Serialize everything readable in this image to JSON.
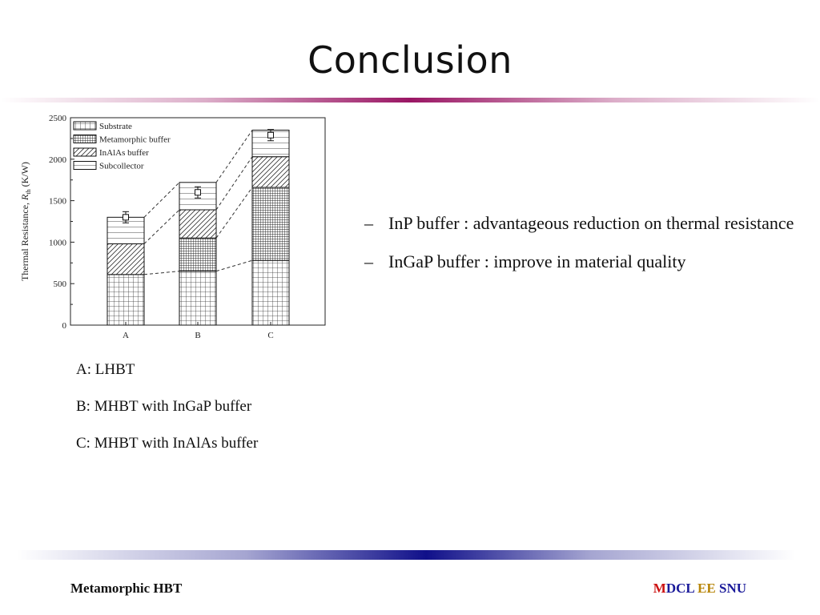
{
  "slide": {
    "title": "Conclusion",
    "captions": [
      "A: LHBT",
      "B: MHBT with InGaP buffer",
      "C: MHBT with InAlAs buffer"
    ],
    "bullets": [
      {
        "dash": "–",
        "text": "InP buffer  :  advantageous reduction on thermal resistance"
      },
      {
        "dash": "–",
        "text": "InGaP buffer : improve in material quality"
      }
    ],
    "footer": {
      "left": "Metamorphic HBT",
      "right_m": "M",
      "right_dcl": "DCL",
      "right_ee": "EE",
      "right_snu": "SNU"
    }
  },
  "chart_data": {
    "type": "bar",
    "stacked": true,
    "categories": [
      "A",
      "B",
      "C"
    ],
    "series": [
      {
        "name": "Substrate",
        "pattern": "grid",
        "values": [
          610,
          650,
          780
        ]
      },
      {
        "name": "Metamorphic buffer",
        "pattern": "dense-grid",
        "values": [
          0,
          400,
          880
        ]
      },
      {
        "name": "InAlAs buffer",
        "pattern": "diagonal-hatch",
        "values": [
          370,
          340,
          370
        ]
      },
      {
        "name": "Subcollector",
        "pattern": "horizontal-lines",
        "values": [
          320,
          330,
          320
        ]
      }
    ],
    "error_markers": [
      1300,
      1600,
      2290
    ],
    "ylabel_main": "Thermal Resistance, ",
    "ylabel_sym": "R",
    "ylabel_sub": "th",
    "ylabel_unit": " (K/W)",
    "ylim": [
      0,
      2500
    ],
    "yticks": [
      0,
      500,
      1000,
      1500,
      2000,
      2500
    ],
    "legend_position": "top-left",
    "grid": false
  }
}
